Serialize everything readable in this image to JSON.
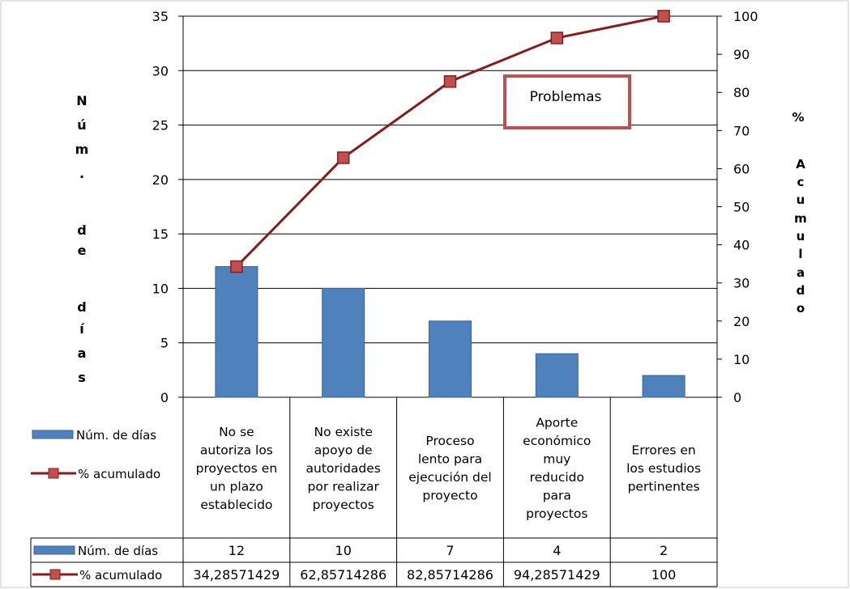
{
  "chart_data": {
    "type": "bar",
    "categories": [
      "No se autoriza los proyectos en un plazo establecido",
      "No existe apoyo de autoridades por realizar proyectos",
      "Proceso lento para ejecución del proyecto",
      "Aporte económico muy reducido para proyectos",
      "Errores en los estudios pertinentes"
    ],
    "category_lines": [
      [
        "No se",
        "autoriza los",
        "proyectos en",
        "un plazo",
        "establecido"
      ],
      [
        "No existe",
        "apoyo de",
        "autoridades",
        "por realizar",
        "proyectos"
      ],
      [
        "Proceso",
        "lento para",
        "ejecución del",
        "proyecto"
      ],
      [
        "Aporte",
        "económico",
        "muy",
        "reducido",
        "para",
        "proyectos"
      ],
      [
        "Errores en",
        "los estudios",
        "pertinentes"
      ]
    ],
    "series": [
      {
        "name": "Núm. de días",
        "type": "bar",
        "axis": "left",
        "values": [
          12,
          10,
          7,
          4,
          2
        ],
        "color": "#4F81BD"
      },
      {
        "name": "% acumulado",
        "type": "line",
        "axis": "right",
        "values": [
          34.28571429,
          62.85714286,
          82.85714286,
          94.28571429,
          100
        ],
        "color": "#8B1A1A"
      }
    ],
    "table_values": {
      "Núm. de días": [
        "12",
        "10",
        "7",
        "4",
        "2"
      ],
      "% acumulado": [
        "34,28571429",
        "62,85714286",
        "82,85714286",
        "94,28571429",
        "100"
      ]
    },
    "ylabel_left": "Núm. de días",
    "ylabel_left_chars": [
      "N",
      "ú",
      "m",
      ".",
      "d",
      "e",
      "d",
      "í",
      "a",
      "s"
    ],
    "ylabel_right": "% Acumulado",
    "ylabel_right_chars": [
      "%",
      "A",
      "c",
      "u",
      "m",
      "u",
      "l",
      "a",
      "d",
      "o"
    ],
    "yticks_left": [
      "0",
      "5",
      "10",
      "15",
      "20",
      "25",
      "30",
      "35"
    ],
    "yticks_right": [
      "0",
      "10",
      "20",
      "30",
      "40",
      "50",
      "60",
      "70",
      "80",
      "90",
      "100"
    ],
    "ylim_left": [
      0,
      35
    ],
    "ylim_right": [
      0,
      100
    ],
    "grid": true,
    "legend_placement": "left of data table",
    "annotation": {
      "text": "Problemas",
      "border_color": "#C0504D"
    }
  }
}
